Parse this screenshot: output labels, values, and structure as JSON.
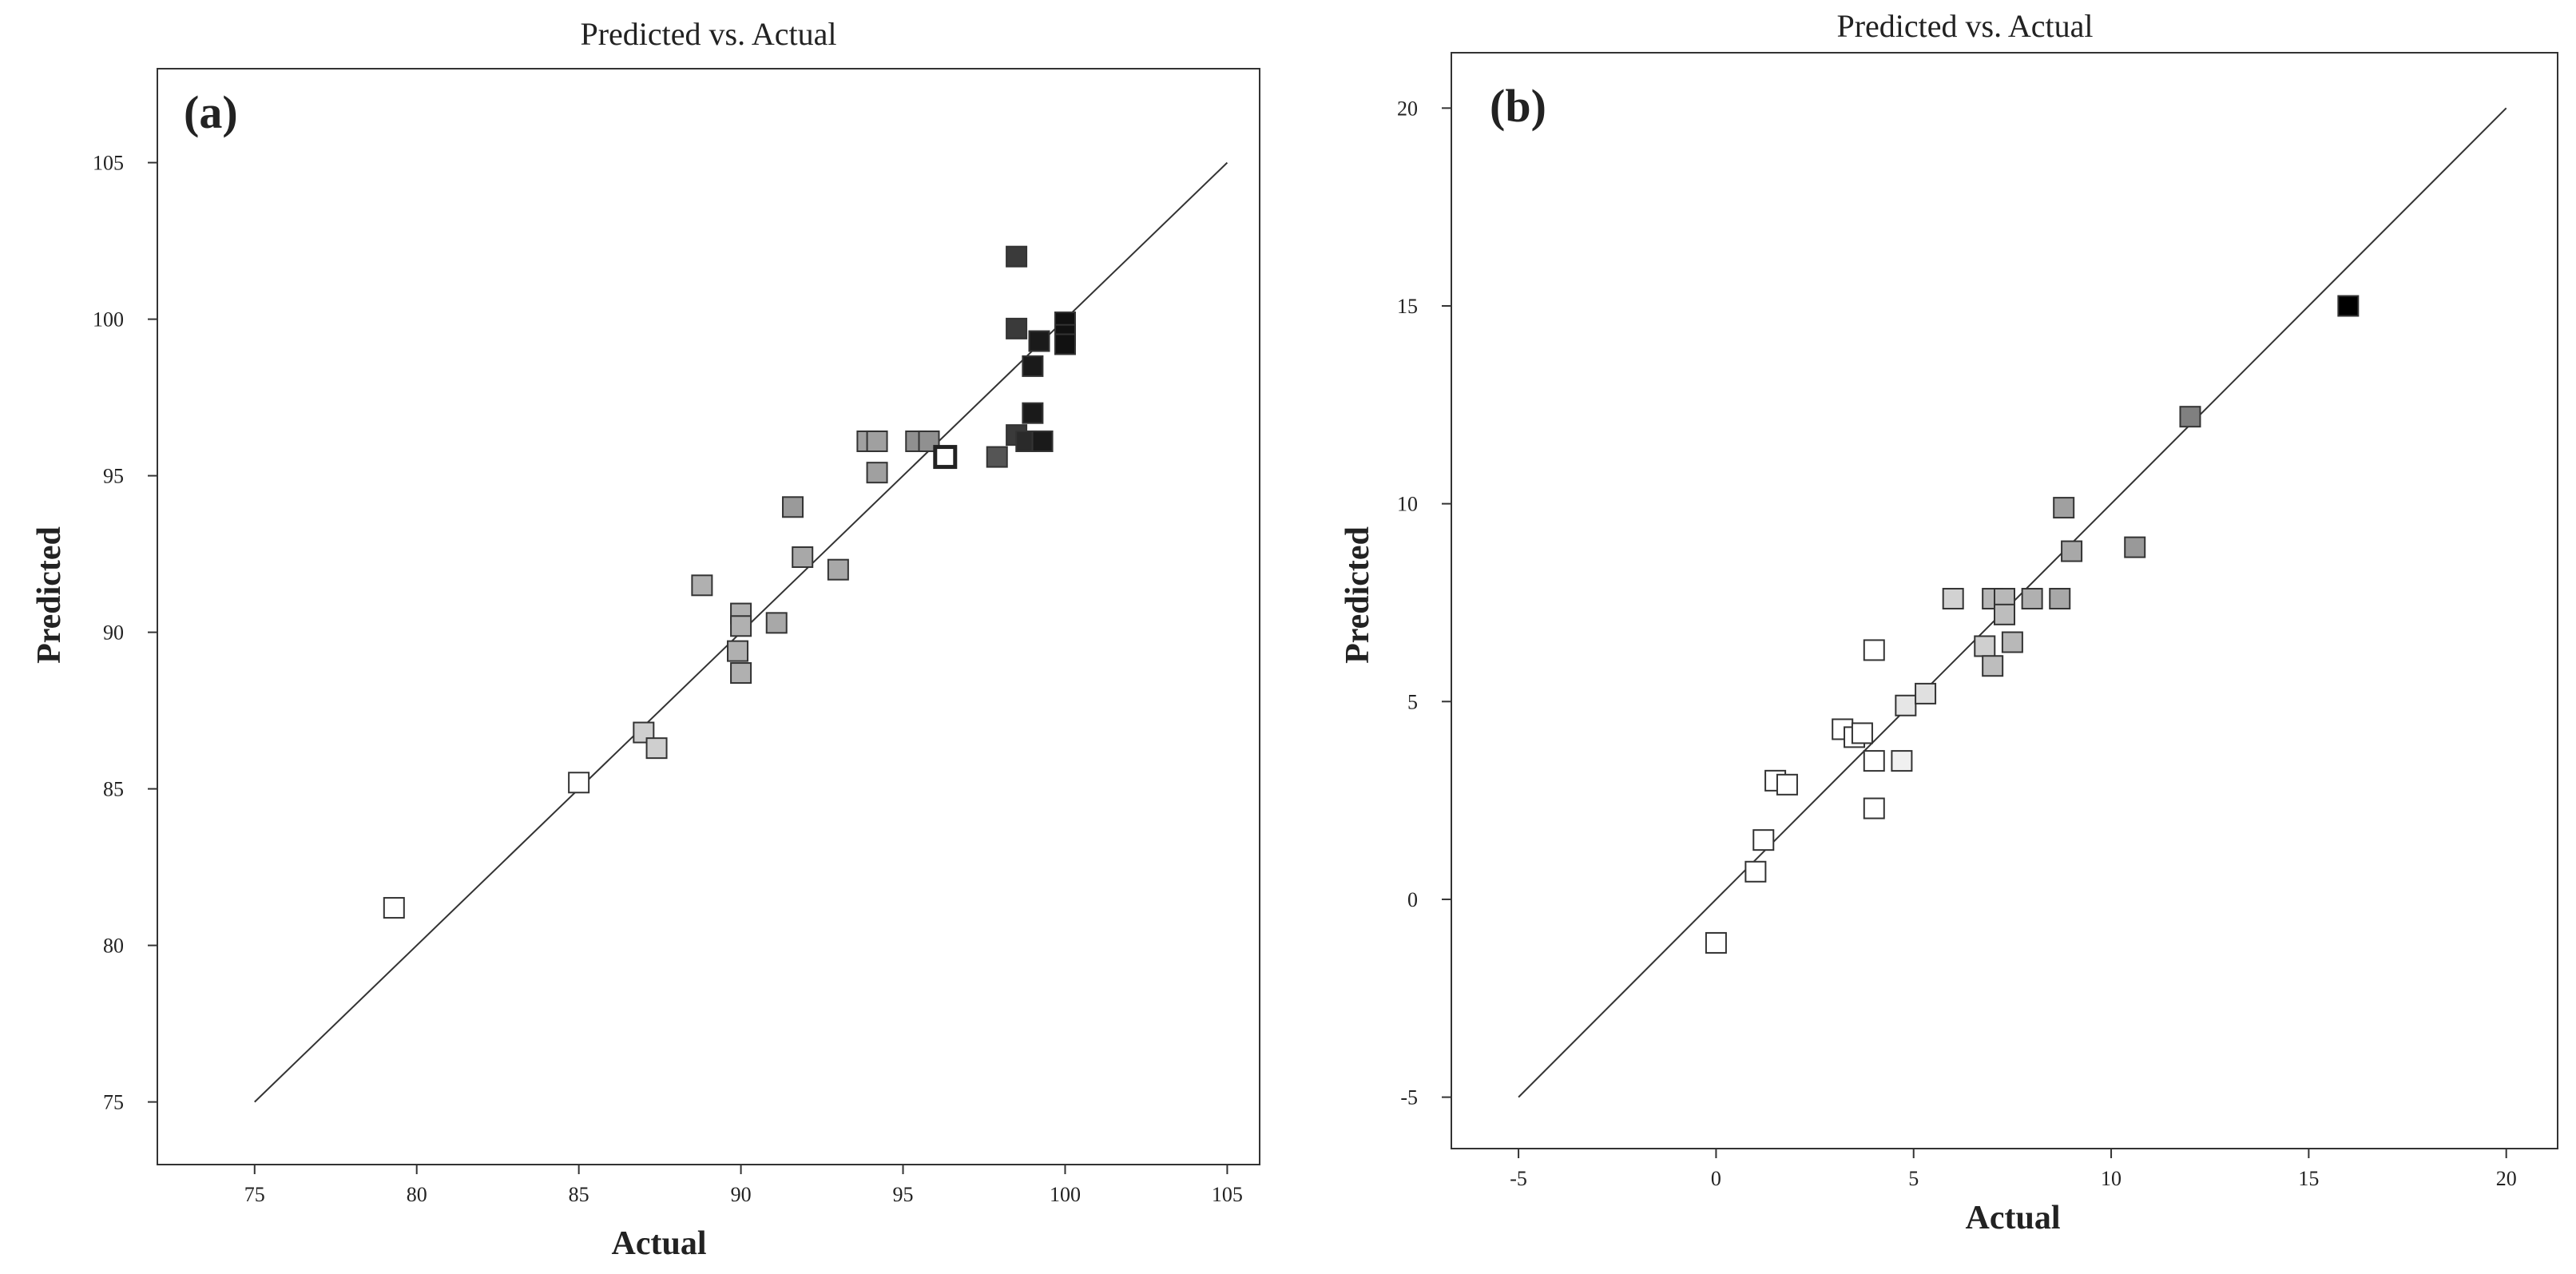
{
  "chart_data": [
    {
      "type": "scatter",
      "panel_label": "(a)",
      "title": "Predicted vs. Actual",
      "xlabel": "Actual",
      "ylabel": "Predicted",
      "xlim": [
        72,
        106
      ],
      "ylim": [
        73,
        108
      ],
      "xticks": [
        75,
        80,
        85,
        90,
        95,
        100,
        105
      ],
      "yticks": [
        75,
        80,
        85,
        90,
        95,
        100,
        105
      ],
      "reference_line": [
        [
          75,
          75
        ],
        [
          105,
          105
        ]
      ],
      "points": [
        {
          "x": 79.3,
          "y": 81.2,
          "shade": "#ffffff"
        },
        {
          "x": 85.0,
          "y": 85.2,
          "shade": "#ffffff"
        },
        {
          "x": 87.0,
          "y": 86.8,
          "shade": "#cfcfcf"
        },
        {
          "x": 87.4,
          "y": 86.3,
          "shade": "#cfcfcf"
        },
        {
          "x": 88.8,
          "y": 91.5,
          "shade": "#b0b0b0"
        },
        {
          "x": 90.0,
          "y": 90.6,
          "shade": "#b0b0b0"
        },
        {
          "x": 90.0,
          "y": 90.2,
          "shade": "#b0b0b0"
        },
        {
          "x": 89.9,
          "y": 89.4,
          "shade": "#b0b0b0"
        },
        {
          "x": 90.0,
          "y": 88.7,
          "shade": "#b0b0b0"
        },
        {
          "x": 91.1,
          "y": 90.3,
          "shade": "#a8a8a8"
        },
        {
          "x": 91.6,
          "y": 94.0,
          "shade": "#9a9a9a"
        },
        {
          "x": 91.9,
          "y": 92.4,
          "shade": "#a8a8a8"
        },
        {
          "x": 93.0,
          "y": 92.0,
          "shade": "#a8a8a8"
        },
        {
          "x": 93.9,
          "y": 96.1,
          "shade": "#a0a0a0"
        },
        {
          "x": 94.2,
          "y": 96.1,
          "shade": "#a0a0a0"
        },
        {
          "x": 94.2,
          "y": 95.1,
          "shade": "#a0a0a0"
        },
        {
          "x": 95.4,
          "y": 96.1,
          "shade": "#909090"
        },
        {
          "x": 95.8,
          "y": 96.1,
          "shade": "#909090"
        },
        {
          "x": 96.3,
          "y": 95.6,
          "shade": "#ffffff",
          "thick": true
        },
        {
          "x": 97.9,
          "y": 95.6,
          "shade": "#555555"
        },
        {
          "x": 98.5,
          "y": 102.0,
          "shade": "#3a3a3a"
        },
        {
          "x": 98.5,
          "y": 99.7,
          "shade": "#3a3a3a"
        },
        {
          "x": 98.5,
          "y": 96.3,
          "shade": "#3a3a3a"
        },
        {
          "x": 98.8,
          "y": 96.1,
          "shade": "#2a2a2a"
        },
        {
          "x": 99.0,
          "y": 98.5,
          "shade": "#1a1a1a"
        },
        {
          "x": 99.0,
          "y": 97.0,
          "shade": "#1a1a1a"
        },
        {
          "x": 99.2,
          "y": 99.3,
          "shade": "#1a1a1a"
        },
        {
          "x": 99.3,
          "y": 96.1,
          "shade": "#1a1a1a"
        },
        {
          "x": 100.0,
          "y": 99.9,
          "shade": "#111111"
        },
        {
          "x": 100.0,
          "y": 99.5,
          "shade": "#111111"
        },
        {
          "x": 100.0,
          "y": 99.2,
          "shade": "#111111"
        }
      ]
    },
    {
      "type": "scatter",
      "panel_label": "(b)",
      "title": "Predicted vs. Actual",
      "xlabel": "Actual",
      "ylabel": "Predicted",
      "xlim": [
        -6.7,
        21.3
      ],
      "ylim": [
        -6.3,
        21.4
      ],
      "xticks": [
        -5,
        0,
        5,
        10,
        15,
        20
      ],
      "yticks": [
        -5,
        0,
        5,
        10,
        15,
        20
      ],
      "reference_line": [
        [
          -5,
          -5
        ],
        [
          20,
          20
        ]
      ],
      "points": [
        {
          "x": 0.0,
          "y": -1.1,
          "shade": "#ffffff"
        },
        {
          "x": 1.0,
          "y": 0.7,
          "shade": "#ffffff"
        },
        {
          "x": 1.2,
          "y": 1.5,
          "shade": "#ffffff"
        },
        {
          "x": 1.5,
          "y": 3.0,
          "shade": "#ffffff"
        },
        {
          "x": 1.8,
          "y": 2.9,
          "shade": "#ffffff"
        },
        {
          "x": 3.2,
          "y": 4.3,
          "shade": "#ffffff"
        },
        {
          "x": 3.5,
          "y": 4.1,
          "shade": "#ffffff"
        },
        {
          "x": 3.7,
          "y": 4.2,
          "shade": "#ffffff"
        },
        {
          "x": 4.0,
          "y": 6.3,
          "shade": "#ffffff"
        },
        {
          "x": 4.0,
          "y": 3.5,
          "shade": "#ffffff"
        },
        {
          "x": 4.0,
          "y": 2.3,
          "shade": "#ffffff"
        },
        {
          "x": 4.7,
          "y": 3.5,
          "shade": "#f0f0f0"
        },
        {
          "x": 4.8,
          "y": 4.9,
          "shade": "#e6e6e6"
        },
        {
          "x": 5.3,
          "y": 5.2,
          "shade": "#e0e0e0"
        },
        {
          "x": 6.0,
          "y": 7.6,
          "shade": "#d2d2d2"
        },
        {
          "x": 6.8,
          "y": 6.4,
          "shade": "#cfcfcf"
        },
        {
          "x": 7.0,
          "y": 5.9,
          "shade": "#bdbdbd"
        },
        {
          "x": 7.0,
          "y": 7.6,
          "shade": "#b8b8b8"
        },
        {
          "x": 7.3,
          "y": 7.6,
          "shade": "#b8b8b8"
        },
        {
          "x": 7.3,
          "y": 7.2,
          "shade": "#bdbdbd"
        },
        {
          "x": 7.5,
          "y": 6.5,
          "shade": "#b8b8b8"
        },
        {
          "x": 8.0,
          "y": 7.6,
          "shade": "#b0b0b0"
        },
        {
          "x": 8.7,
          "y": 7.6,
          "shade": "#a8a8a8"
        },
        {
          "x": 8.8,
          "y": 9.9,
          "shade": "#a0a0a0"
        },
        {
          "x": 9.0,
          "y": 8.8,
          "shade": "#a8a8a8"
        },
        {
          "x": 10.6,
          "y": 8.9,
          "shade": "#999999"
        },
        {
          "x": 12.0,
          "y": 12.2,
          "shade": "#808080"
        },
        {
          "x": 16.0,
          "y": 15.0,
          "shade": "#000000"
        }
      ]
    }
  ]
}
